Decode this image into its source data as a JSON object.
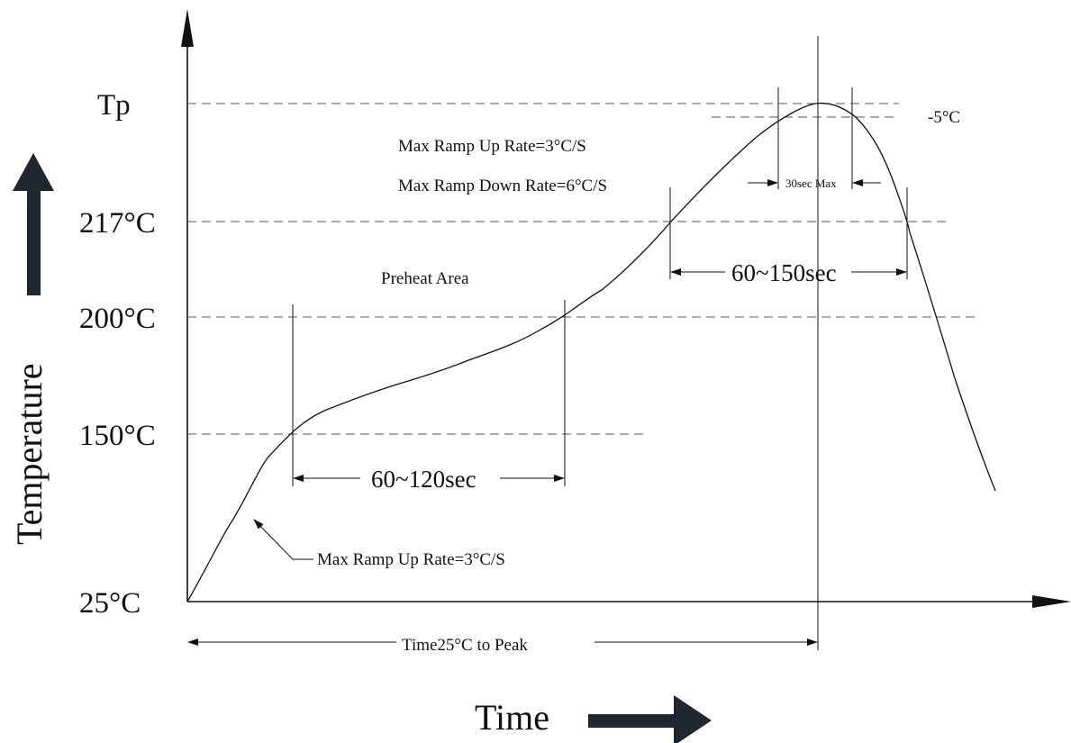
{
  "colors": {
    "ink": "#111111",
    "arrow_fill": "#1e2630",
    "background": "#ffffff"
  },
  "y_axis": {
    "title": "Temperature",
    "labels": {
      "tp": "Tp",
      "t217": "217°C",
      "t200": "200°C",
      "t150": "150°C",
      "t25": "25°C"
    }
  },
  "x_axis": {
    "title": "Time"
  },
  "annotations": {
    "ramp_up_top": "Max Ramp Up Rate=3°C/S",
    "ramp_down": "Max Ramp Down Rate=6°C/S",
    "preheat": "Preheat Area",
    "minus5": "-5°C",
    "peak_window": "30sec Max",
    "preheat_time": "60~120sec",
    "above_217_time": "60~150sec",
    "ramp_up_bottom": "Max Ramp Up Rate=3°C/S",
    "time_to_peak": "Time25°C to Peak"
  },
  "icons": {
    "up": "temperature-up-arrow-icon",
    "right": "time-right-arrow-icon"
  }
}
